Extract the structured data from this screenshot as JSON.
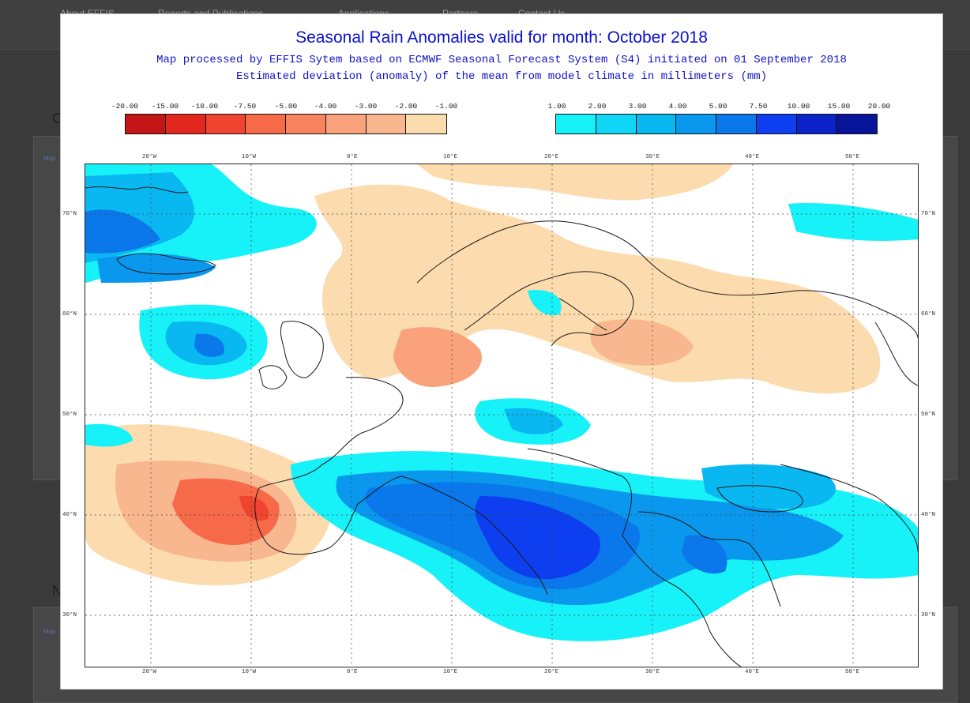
{
  "map": {
    "title": "Seasonal Rain Anomalies valid for month: October 2018",
    "subtitle_line1": "Map processed by EFFIS Sytem based on ECMWF Seasonal Forecast System (S4) initiated on 01 September 2018",
    "subtitle_line2": "Estimated deviation (anomaly) of the mean from model climate in millimeters (mm)",
    "legend_negative": {
      "labels": [
        "-20.00",
        "-15.00",
        "-10.00",
        "-7.50",
        "-5.00",
        "-4.00",
        "-3.00",
        "-2.00",
        "-1.00"
      ],
      "colors": [
        "#c41616",
        "#e2281e",
        "#f14430",
        "#f66a4a",
        "#f7845f",
        "#f9a27c",
        "#f8b78e",
        "#fcdcae"
      ]
    },
    "legend_positive": {
      "labels": [
        "1.00",
        "2.00",
        "3.00",
        "4.00",
        "5.00",
        "7.50",
        "10.00",
        "15.00",
        "20.00"
      ],
      "colors": [
        "#16f2f8",
        "#0fd6f4",
        "#0ab8f1",
        "#0a98ee",
        "#0a78ea",
        "#0d3ff0",
        "#0b22c8",
        "#08149a"
      ]
    },
    "longitude_labels": [
      "20°W",
      "10°W",
      "0°E",
      "10°E",
      "20°E",
      "30°E",
      "40°E",
      "50°E"
    ],
    "latitude_labels": [
      "70°N",
      "60°N",
      "50°N",
      "40°N",
      "30°N"
    ]
  },
  "background": {
    "nav_items": [
      "About EFFIS",
      "Reports and Publications",
      "Applications",
      "Partners",
      "Contact Us"
    ],
    "panel_letters": [
      "C",
      "N"
    ],
    "panel_link": "Map"
  }
}
